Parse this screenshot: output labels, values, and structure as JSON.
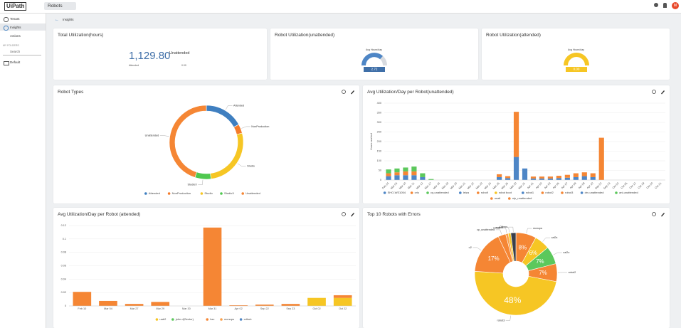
{
  "app": {
    "logo": "UiPath",
    "service": "Robots",
    "avatar": "M",
    "nav": [
      "Tenant",
      "Insights",
      "Actions"
    ],
    "folders_heading": "MY FOLDERS",
    "search": "Search",
    "folders": [
      "Default"
    ],
    "page_title": "Insights"
  },
  "cards": [
    {
      "title": "Total Utilization(hours)",
      "value": "1,129.80",
      "value_caption": "Unattended",
      "sub_label": "Attended",
      "sub_value": "0.00"
    },
    {
      "title": "Robot Utilization(unattended)",
      "gauge_label": "Avg Hours/day",
      "value": "2.72"
    },
    {
      "title": "Robot Utilization(attended)",
      "gauge_label": "Avg Hours/day",
      "value": "0.00"
    }
  ],
  "chart_data": [
    {
      "type": "donut",
      "title": "Robot Types",
      "categories": [
        "Attended",
        "NonProduction",
        "Studio",
        "StudioX",
        "Unattended"
      ],
      "values": [
        17,
        4,
        27,
        7,
        45
      ],
      "colors": [
        "#3f7fc0",
        "#f47b2a",
        "#f6c624",
        "#4fc84f",
        "#f58634"
      ],
      "legend": true
    },
    {
      "type": "stacked-bar",
      "title": "Avg Utilization/Day per Robot(unattended)",
      "y_label": "Hours worked",
      "categories": [
        "Feb 24",
        "Mar 04",
        "Mar 10",
        "Mar 11",
        "Mar 12",
        "Mar 17",
        "Mar 18",
        "Mar 19",
        "Mar 20",
        "Mar 21",
        "Mar 22",
        "Mar 23",
        "Mar 24",
        "Mar 25",
        "Mar 26",
        "Mar 30",
        "Mar 31",
        "Apr 01",
        "Apr 02",
        "Apr 03",
        "Apr 06",
        "Apr 07",
        "Apr 08",
        "Apr 09",
        "Apr 10",
        "Sep 22",
        "Sep 23",
        "Oct 02",
        "Oct 05",
        "Oct 12",
        "Oct 19",
        "Oct 20",
        "Oct 21"
      ],
      "ylim": [
        0,
        400
      ],
      "yticks": [
        0,
        50,
        100,
        150,
        200,
        250,
        300,
        350,
        400
      ],
      "grid": true,
      "series": [
        {
          "name": "SHO-WS1054",
          "color": "#4e86c6",
          "values": [
            20,
            25,
            25,
            25,
            15,
            0,
            0,
            0,
            0,
            0,
            0,
            0,
            0,
            15,
            10,
            120,
            60,
            8,
            8,
            8,
            10,
            12,
            15,
            20,
            15,
            0,
            0,
            0,
            0,
            0,
            0,
            0,
            0
          ]
        },
        {
          "name": "cris",
          "color": "#f58634",
          "values": [
            15,
            15,
            20,
            20,
            0,
            0,
            0,
            0,
            0,
            0,
            0,
            0,
            0,
            15,
            10,
            235,
            0,
            10,
            10,
            10,
            12,
            15,
            20,
            20,
            20,
            220,
            0,
            0,
            0,
            0,
            0,
            0,
            0
          ]
        },
        {
          "name": "cq-unattended",
          "color": "#5cc85c",
          "values": [
            20,
            20,
            20,
            25,
            20,
            5,
            0,
            0,
            0,
            0,
            0,
            0,
            0,
            0,
            0,
            0,
            0,
            0,
            0,
            0,
            0,
            0,
            0,
            0,
            0,
            0,
            0,
            0,
            0,
            0,
            0,
            0,
            0
          ]
        },
        {
          "name": "leiza",
          "color": "#4e86c6",
          "values": [
            0,
            0,
            0,
            0,
            0,
            0,
            0,
            0,
            0,
            0,
            0,
            0,
            0,
            0,
            0,
            0,
            0,
            0,
            0,
            0,
            0,
            0,
            0,
            0,
            0,
            0,
            0,
            0,
            0,
            0,
            0,
            0,
            0
          ]
        },
        {
          "name": "robo9",
          "color": "#f58634",
          "values": [
            0,
            0,
            0,
            0,
            0,
            0,
            0,
            0,
            0,
            0,
            0,
            0,
            0,
            0,
            0,
            0,
            0,
            0,
            0,
            0,
            0,
            0,
            0,
            0,
            0,
            0,
            0,
            0,
            0,
            0,
            0,
            0,
            0
          ]
        },
        {
          "name": "robot boot",
          "color": "#f6c624",
          "values": [
            0,
            0,
            0,
            0,
            0,
            0,
            0,
            0,
            0,
            0,
            0,
            0,
            0,
            0,
            0,
            0,
            0,
            0,
            0,
            0,
            0,
            0,
            0,
            0,
            0,
            0,
            0,
            0,
            0,
            0,
            0,
            0,
            0
          ]
        },
        {
          "name": "robot1",
          "color": "#4e86c6",
          "values": [
            0,
            0,
            0,
            0,
            0,
            0,
            0,
            0,
            0,
            0,
            0,
            0,
            0,
            0,
            0,
            0,
            0,
            0,
            0,
            0,
            0,
            0,
            0,
            0,
            0,
            0,
            0,
            0,
            0,
            0,
            0,
            0,
            0
          ]
        },
        {
          "name": "robot2",
          "color": "#f58634",
          "values": [
            0,
            0,
            0,
            0,
            0,
            0,
            0,
            0,
            0,
            0,
            0,
            0,
            0,
            0,
            0,
            0,
            0,
            0,
            0,
            0,
            0,
            0,
            0,
            0,
            0,
            0,
            0,
            0,
            0,
            0,
            0,
            0,
            0
          ]
        },
        {
          "name": "robot3",
          "color": "#f58634",
          "values": [
            0,
            0,
            0,
            0,
            0,
            0,
            0,
            0,
            0,
            0,
            0,
            0,
            0,
            0,
            0,
            0,
            0,
            0,
            0,
            0,
            0,
            0,
            0,
            0,
            0,
            0,
            0,
            0,
            0,
            0,
            0,
            0,
            0
          ]
        },
        {
          "name": "drv-unattended",
          "color": "#4e86c6",
          "values": [
            0,
            0,
            0,
            0,
            0,
            0,
            0,
            0,
            0,
            0,
            0,
            0,
            0,
            0,
            0,
            0,
            0,
            0,
            0,
            0,
            0,
            0,
            0,
            0,
            0,
            0,
            0,
            0,
            0,
            0,
            0,
            0,
            0
          ]
        },
        {
          "name": "ani-unattended",
          "color": "#5cc85c",
          "values": [
            0,
            0,
            0,
            0,
            0,
            0,
            0,
            0,
            0,
            0,
            0,
            0,
            0,
            0,
            0,
            0,
            0,
            0,
            0,
            0,
            0,
            0,
            0,
            0,
            0,
            0,
            0,
            0,
            0,
            0,
            0,
            0,
            0
          ]
        },
        {
          "name": "unali",
          "color": "#f58634",
          "values": [
            0,
            0,
            0,
            0,
            0,
            0,
            0,
            0,
            0,
            0,
            0,
            0,
            0,
            0,
            0,
            0,
            0,
            0,
            0,
            0,
            0,
            0,
            0,
            0,
            0,
            0,
            0,
            0,
            0,
            0,
            0,
            0,
            0
          ]
        },
        {
          "name": "uip_unattended",
          "color": "#f58634",
          "values": [
            0,
            0,
            0,
            0,
            0,
            0,
            0,
            0,
            0,
            0,
            0,
            0,
            0,
            0,
            0,
            0,
            0,
            0,
            0,
            0,
            0,
            0,
            0,
            0,
            0,
            0,
            0,
            0,
            0,
            0,
            0,
            0,
            0
          ]
        }
      ]
    },
    {
      "type": "stacked-bar",
      "title": "Avg Utilization/Day per Robot (attended)",
      "categories": [
        "Feb 10",
        "Mar 04",
        "Mar 27",
        "Mar 29",
        "Mar 30",
        "Mar 31",
        "Apr 02",
        "Sep 22",
        "Sep 23",
        "Oct 02",
        "Oct 22"
      ],
      "ylim": [
        0,
        0.12
      ],
      "yticks": [
        0,
        0.02,
        0.04,
        0.06,
        0.08,
        0.1,
        0.12
      ],
      "grid": true,
      "series": [
        {
          "name": "uab2",
          "color": "#f6c624",
          "values": [
            0,
            0,
            0,
            0,
            0,
            0,
            0,
            0,
            0,
            0.012,
            0.012
          ]
        },
        {
          "name": "john.d(Sector)",
          "color": "#5cc85c",
          "values": [
            0,
            0,
            0,
            0,
            0,
            0,
            0,
            0,
            0,
            0,
            0
          ]
        },
        {
          "name": "hzc",
          "color": "#f58634",
          "values": [
            0.021,
            0.0075,
            0.003,
            0.006,
            0,
            0.117,
            0.001,
            0.002,
            0.003,
            0,
            0.004
          ]
        },
        {
          "name": "mcnops",
          "color": "#f9a04b",
          "values": [
            0,
            0,
            0,
            0,
            0,
            0,
            0,
            0,
            0,
            0,
            0
          ]
        },
        {
          "name": "cdhub",
          "color": "#4e86c6",
          "values": [
            0,
            0,
            0,
            0,
            0,
            0,
            0,
            0,
            0,
            0,
            0
          ]
        }
      ]
    },
    {
      "type": "donut",
      "title": "Top 10 Robots with Errors",
      "categories": [
        "mcnops",
        "cal2s",
        "cal2o",
        "robot2",
        "robot3",
        "u2",
        "cp_unattended",
        "cdhub",
        "robo9",
        "Others"
      ],
      "values": [
        8,
        6,
        7,
        7,
        48,
        17,
        3,
        1,
        1,
        2
      ],
      "value_labels": [
        "8%",
        "6%",
        "7%",
        "7%",
        "48%",
        "17%",
        null,
        null,
        null,
        null
      ],
      "colors": [
        "#f58634",
        "#f6c624",
        "#5cc85c",
        "#f58634",
        "#f6c624",
        "#f58634",
        "#f58634",
        "#f9a04b",
        "#f6c624",
        "#3a3f4a"
      ],
      "legend": false
    }
  ]
}
